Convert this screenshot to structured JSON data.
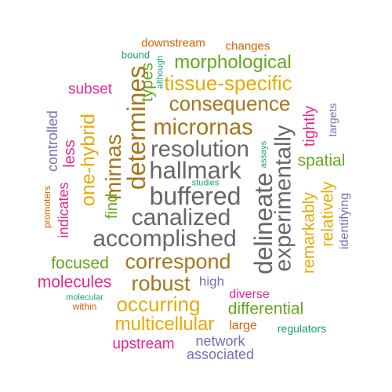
{
  "words": {
    "downstream": "downstream",
    "changes": "changes",
    "bound": "bound",
    "although": "although",
    "morphological": "morphological",
    "types": "types",
    "determines": "determines",
    "tissue_specific": "tissue-specific",
    "subset": "subset",
    "consequence": "consequence",
    "controlled": "controlled",
    "less": "less",
    "one_hybrid": "one-hybrid",
    "mirnas": "mirnas",
    "micrornas": "micrornas",
    "tightly": "tightly",
    "targets": "targets",
    "resolution": "resolution",
    "experimentally": "experimentally",
    "assays": "assays",
    "spatial": "spatial",
    "hallmark": "hallmark",
    "studies": "studies",
    "delineate": "delineate",
    "buffered": "buffered",
    "promoters": "promoters",
    "indicates": "indicates",
    "find": "find",
    "remarkably": "remarkably",
    "relatively": "relatively",
    "identifying": "identifying",
    "canalized": "canalized",
    "accomplished": "accomplished",
    "focused": "focused",
    "correspond": "correspond",
    "molecules": "molecules",
    "robust": "robust",
    "high": "high",
    "diverse": "diverse",
    "molecular": "molecular",
    "within": "within",
    "occurring": "occurring",
    "differential": "differential",
    "multicellular": "multicellular",
    "large": "large",
    "regulators": "regulators",
    "upstream": "upstream",
    "network": "network",
    "associated": "associated"
  },
  "palette": {
    "orange": "#d95f02",
    "teal": "#1b9e77",
    "purple": "#7570b3",
    "pink": "#e7298a",
    "green": "#66a61e",
    "gold": "#e6ab02",
    "brown": "#a6761d",
    "grey": "#666666"
  }
}
